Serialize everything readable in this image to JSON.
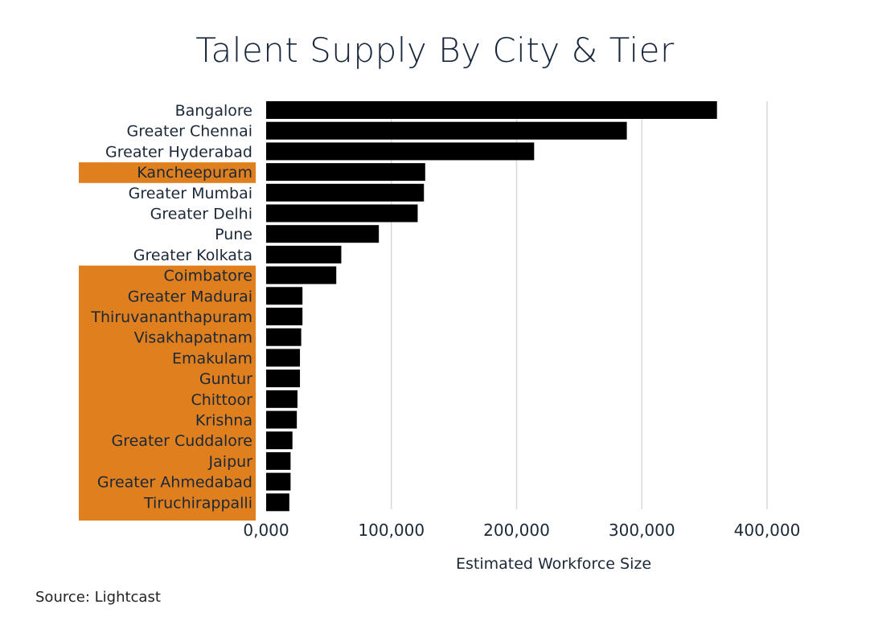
{
  "chart_data": {
    "type": "bar",
    "orientation": "horizontal",
    "title": "Talent Supply By City & Tier",
    "xlabel": "Estimated Workforce Size",
    "ylabel": "",
    "xlim": [
      0,
      400000
    ],
    "x_ticks": [
      "0,000",
      "100,000",
      "200,000",
      "300,000",
      "400,000"
    ],
    "x_tick_values": [
      0,
      100000,
      200000,
      300000,
      400000
    ],
    "grid": true,
    "categories": [
      "Bangalore",
      "Greater Chennai",
      "Greater Hyderabad",
      "Kancheepuram",
      "Greater Mumbai",
      "Greater Delhi",
      "Pune",
      "Greater Kolkata",
      "Coimbatore",
      "Greater Madurai",
      "Thiruvananthapuram",
      "Visakhapatnam",
      "Emakulam",
      "Guntur",
      "Chittoor",
      "Krishna",
      "Greater Cuddalore",
      "Jaipur",
      "Greater Ahmedabad",
      "Tiruchirappalli"
    ],
    "values": [
      360000,
      288000,
      214000,
      127000,
      126000,
      121000,
      90000,
      60000,
      56000,
      29000,
      29000,
      28000,
      27000,
      27000,
      25000,
      24500,
      21000,
      19500,
      19500,
      18500
    ],
    "highlighted": [
      false,
      false,
      false,
      true,
      false,
      false,
      false,
      false,
      true,
      true,
      true,
      true,
      true,
      true,
      true,
      true,
      true,
      true,
      true,
      true
    ],
    "bar_color": "#000000",
    "highlight_color": "#df7f1e",
    "grid_color": "#d9d9d9"
  },
  "footer": {
    "source": "Source: Lightcast"
  }
}
